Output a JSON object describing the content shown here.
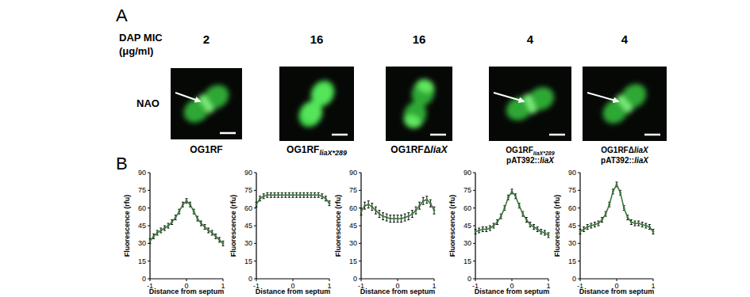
{
  "panel_labels": [
    "A",
    "B"
  ],
  "mic_label": [
    "DAP MIC",
    "(μg/ml)"
  ],
  "stain_label": "NAO",
  "strains": [
    {
      "mic": 2,
      "name": "OG1RF"
    },
    {
      "mic": 16,
      "name": "OG1RF",
      "sub": "liaX*289"
    },
    {
      "mic": 16,
      "name": "OG1RFΔ",
      "gene": "liaX"
    },
    {
      "mic": 4,
      "name": "OG1RF",
      "sub": "liaX*289",
      "vector": "pAT392::",
      "vector_gene": "liaX"
    },
    {
      "mic": 4,
      "name": "OG1RFΔ",
      "gene": "liaX",
      "vector": "pAT392::",
      "vector_gene": "liaX"
    }
  ],
  "chart_data": [
    {
      "type": "line",
      "x_label": "Distance from septum",
      "y_label": "Fluorescence (rfu)",
      "x": [
        -1,
        -0.9,
        -0.8,
        -0.7,
        -0.6,
        -0.5,
        -0.4,
        -0.3,
        -0.2,
        -0.1,
        0,
        0.1,
        0.2,
        0.3,
        0.4,
        0.5,
        0.6,
        0.7,
        0.8,
        0.9,
        1
      ],
      "xlim": [
        -1,
        1
      ],
      "xticks": [
        -1,
        0,
        1
      ],
      "ylim": [
        0,
        90
      ],
      "yticks": [
        0,
        15,
        30,
        45,
        60,
        75,
        90
      ],
      "series": [
        {
          "color": "#3b7a3b",
          "marker": "circle",
          "values": [
            32,
            36,
            39,
            41,
            43,
            45,
            48,
            52,
            57,
            63,
            66,
            63,
            57,
            51,
            47,
            44,
            41,
            39,
            36,
            33,
            30
          ],
          "errors": [
            2,
            2,
            2,
            2,
            2,
            2,
            2,
            2,
            2,
            2,
            2,
            2,
            2,
            2,
            2,
            2,
            2,
            2,
            2,
            2,
            2
          ]
        }
      ]
    },
    {
      "type": "line",
      "x_label": "Distance from septum",
      "y_label": "Fluorescence (rfu)",
      "x": [
        -1,
        -0.9,
        -0.8,
        -0.7,
        -0.6,
        -0.5,
        -0.4,
        -0.3,
        -0.2,
        -0.1,
        0,
        0.1,
        0.2,
        0.3,
        0.4,
        0.5,
        0.6,
        0.7,
        0.8,
        0.9,
        1
      ],
      "xlim": [
        -1,
        1
      ],
      "xticks": [
        -1,
        0,
        1
      ],
      "ylim": [
        0,
        90
      ],
      "yticks": [
        0,
        15,
        30,
        45,
        60,
        75,
        90
      ],
      "series": [
        {
          "color": "#3b7a3b",
          "marker": "circle",
          "values": [
            63,
            68,
            70,
            71,
            71,
            71,
            71,
            71,
            71,
            71,
            71,
            71,
            71,
            71,
            71,
            71,
            71,
            71,
            70,
            68,
            64
          ],
          "errors": [
            2,
            2,
            2,
            2,
            2,
            2,
            2,
            2,
            2,
            2,
            2,
            2,
            2,
            2,
            2,
            2,
            2,
            2,
            2,
            2,
            2
          ]
        }
      ]
    },
    {
      "type": "line",
      "x_label": "Distance from septum",
      "y_label": "Fluorescence (rfu)",
      "x": [
        -1,
        -0.9,
        -0.8,
        -0.7,
        -0.6,
        -0.5,
        -0.4,
        -0.3,
        -0.2,
        -0.1,
        0,
        0.1,
        0.2,
        0.3,
        0.4,
        0.5,
        0.6,
        0.7,
        0.8,
        0.9,
        1
      ],
      "xlim": [
        -1,
        1
      ],
      "xticks": [
        -1,
        0,
        1
      ],
      "ylim": [
        0,
        90
      ],
      "yticks": [
        0,
        15,
        30,
        45,
        60,
        75,
        90
      ],
      "series": [
        {
          "color": "#3b7a3b",
          "marker": "circle",
          "values": [
            57,
            62,
            63,
            61,
            58,
            55,
            53,
            52,
            51,
            51,
            51,
            51,
            52,
            53,
            55,
            58,
            62,
            66,
            67,
            64,
            58
          ],
          "errors": [
            3,
            3,
            3,
            3,
            3,
            3,
            3,
            3,
            3,
            3,
            3,
            3,
            3,
            3,
            3,
            3,
            3,
            3,
            3,
            3,
            3
          ]
        }
      ]
    },
    {
      "type": "line",
      "x_label": "Distance from septum",
      "y_label": "Fluorescence (rfu)",
      "x": [
        -1,
        -0.9,
        -0.8,
        -0.7,
        -0.6,
        -0.5,
        -0.4,
        -0.3,
        -0.2,
        -0.1,
        0,
        0.1,
        0.2,
        0.3,
        0.4,
        0.5,
        0.6,
        0.7,
        0.8,
        0.9,
        1
      ],
      "xlim": [
        -1,
        1
      ],
      "xticks": [
        -1,
        0,
        1
      ],
      "ylim": [
        0,
        90
      ],
      "yticks": [
        0,
        15,
        30,
        45,
        60,
        75,
        90
      ],
      "series": [
        {
          "color": "#3b7a3b",
          "marker": "circle",
          "values": [
            40,
            41,
            42,
            42,
            43,
            45,
            48,
            53,
            60,
            69,
            74,
            70,
            62,
            55,
            50,
            46,
            44,
            42,
            40,
            39,
            37
          ],
          "errors": [
            2,
            2,
            2,
            2,
            2,
            2,
            2,
            2,
            2,
            2,
            2,
            2,
            2,
            2,
            2,
            2,
            2,
            2,
            2,
            2,
            2
          ]
        }
      ]
    },
    {
      "type": "line",
      "x_label": "Distance from septum",
      "y_label": "Fluorescence (rfu)",
      "x": [
        -1,
        -0.9,
        -0.8,
        -0.7,
        -0.6,
        -0.5,
        -0.4,
        -0.3,
        -0.2,
        -0.1,
        0,
        0.1,
        0.2,
        0.3,
        0.4,
        0.5,
        0.6,
        0.7,
        0.8,
        0.9,
        1
      ],
      "xlim": [
        -1,
        1
      ],
      "xticks": [
        -1,
        0,
        1
      ],
      "ylim": [
        0,
        90
      ],
      "yticks": [
        0,
        15,
        30,
        45,
        60,
        75,
        90
      ],
      "series": [
        {
          "color": "#3b7a3b",
          "marker": "circle",
          "values": [
            40,
            42,
            44,
            45,
            46,
            47,
            50,
            55,
            63,
            74,
            80,
            73,
            60,
            52,
            48,
            47,
            47,
            46,
            45,
            44,
            40
          ],
          "errors": [
            2,
            2,
            2,
            2,
            2,
            2,
            2,
            2,
            2,
            2,
            2,
            2,
            2,
            2,
            2,
            2,
            2,
            2,
            2,
            2,
            2
          ]
        }
      ]
    }
  ]
}
